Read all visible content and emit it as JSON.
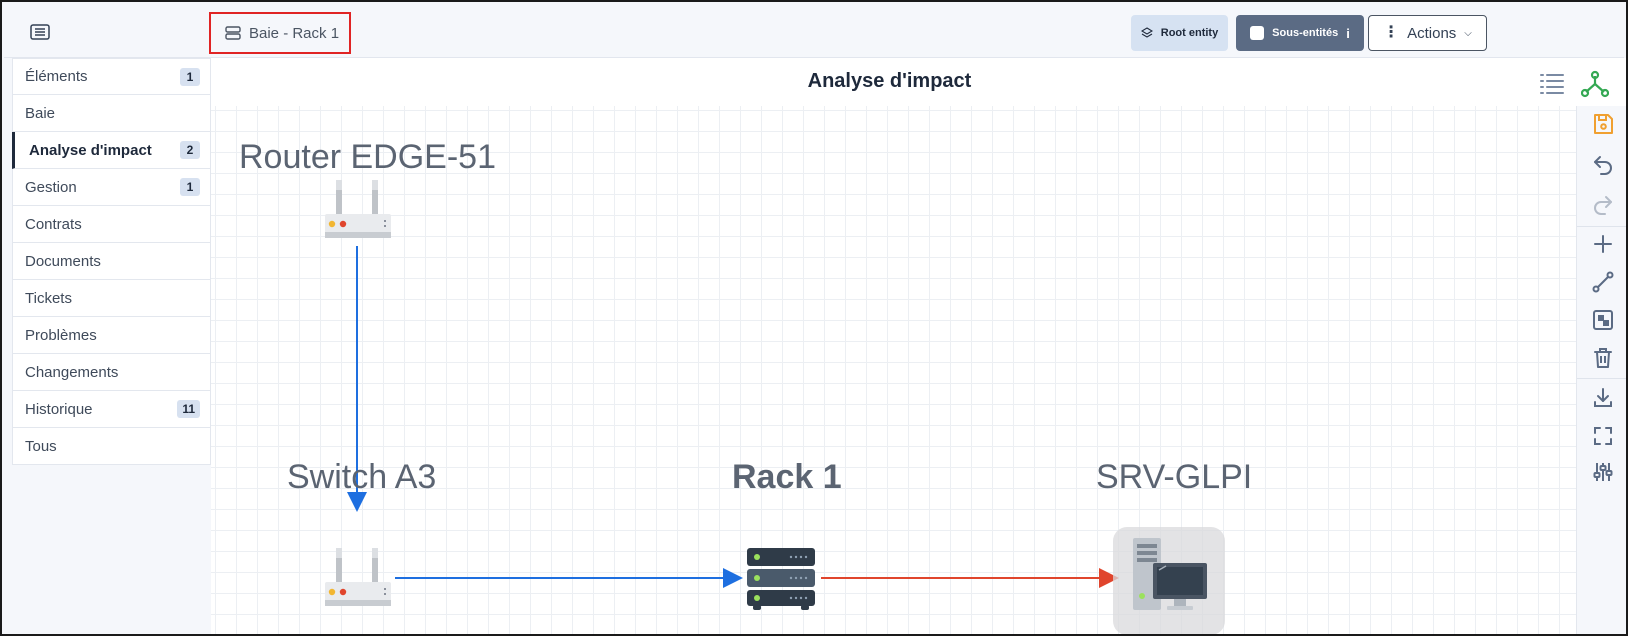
{
  "header": {
    "breadcrumb": "Baie - Rack 1",
    "root_entity_label": "Root entity",
    "sub_entities_label": "Sous-entités",
    "sub_entities_info": "i",
    "actions_label": "Actions"
  },
  "sidebar": {
    "items": [
      {
        "label": "Éléments",
        "badge": "1"
      },
      {
        "label": "Baie",
        "badge": ""
      },
      {
        "label": "Analyse d'impact",
        "badge": "2"
      },
      {
        "label": "Gestion",
        "badge": "1"
      },
      {
        "label": "Contrats",
        "badge": ""
      },
      {
        "label": "Documents",
        "badge": ""
      },
      {
        "label": "Tickets",
        "badge": ""
      },
      {
        "label": "Problèmes",
        "badge": ""
      },
      {
        "label": "Changements",
        "badge": ""
      },
      {
        "label": "Historique",
        "badge": "11"
      },
      {
        "label": "Tous",
        "badge": ""
      }
    ],
    "active_index": 2
  },
  "main": {
    "title": "Analyse d'impact"
  },
  "graph": {
    "nodes": {
      "router": {
        "label": "Router EDGE-51",
        "icon": "router-icon"
      },
      "switch": {
        "label": "Switch A3",
        "icon": "router-icon"
      },
      "rack": {
        "label": "Rack 1",
        "icon": "rack-server-icon"
      },
      "srv": {
        "label": "SRV-GLPI",
        "icon": "computer-icon"
      }
    },
    "colors": {
      "edge_blue": "#1e6fe0",
      "edge_red": "#e0452d",
      "accent_green": "#34a853",
      "accent_orange": "#f0a030"
    }
  },
  "toolbar": {
    "tools": [
      "save-icon",
      "undo-icon",
      "redo-icon",
      "add-icon",
      "edge-icon",
      "compound-icon",
      "delete-icon",
      "download-icon",
      "fullscreen-icon",
      "settings-icon"
    ]
  }
}
